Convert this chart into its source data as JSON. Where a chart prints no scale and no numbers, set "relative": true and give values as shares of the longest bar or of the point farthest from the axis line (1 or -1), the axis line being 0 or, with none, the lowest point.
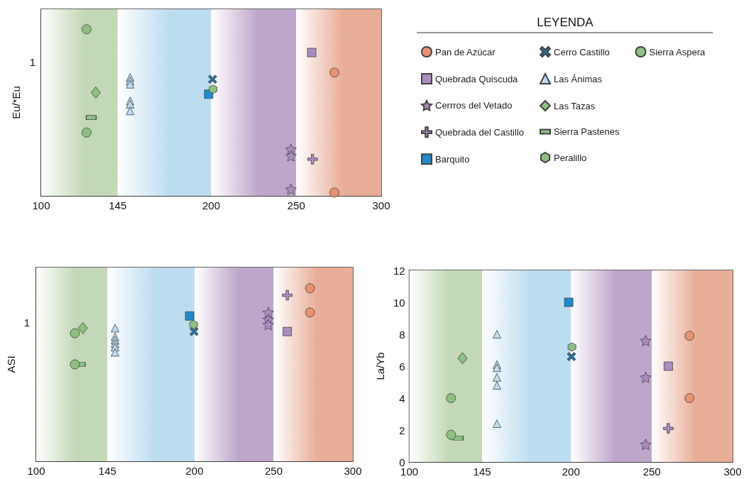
{
  "chart_data": [
    {
      "type": "scatter",
      "ylabel": "Eu/*Eu",
      "relative": true,
      "xlim": [
        100,
        300
      ],
      "xticks": [
        100,
        145,
        200,
        250,
        300
      ],
      "legend": "right",
      "legend_title": "LEYENDA",
      "annotations": [
        "1"
      ],
      "bands": [
        {
          "axis": "x",
          "from": 100,
          "to": 145,
          "color": "#c3d8b6"
        },
        {
          "axis": "x",
          "from": 145,
          "to": 200,
          "color": "#bcdcf0"
        },
        {
          "axis": "x",
          "from": 200,
          "to": 250,
          "color": "#bea6cb"
        },
        {
          "axis": "x",
          "from": 250,
          "to": 300,
          "color": "#e8ad97"
        }
      ],
      "series": [
        {
          "name": "Pan de Azúcar",
          "color": "#e8926f",
          "marker": "circle",
          "x": [
            272.5,
            272.5
          ],
          "values": [
            0.74,
            0.02
          ]
        },
        {
          "name": "Quebrada Quiscuda",
          "color": "#a98cc0",
          "marker": "square",
          "x": [
            259.1
          ],
          "values": [
            0.86
          ]
        },
        {
          "name": "Cerrros del Vetado",
          "color": "#a98cc0",
          "marker": "star",
          "x": [
            246.9,
            246.9,
            246.9
          ],
          "values": [
            0.28,
            0.24,
            0.04
          ]
        },
        {
          "name": "Quebrada del Castillo",
          "color": "#a98cc0",
          "marker": "cross",
          "x": [
            259.6
          ],
          "values": [
            0.22
          ]
        },
        {
          "name": "Barquito",
          "color": "#1a8ccc",
          "marker": "square",
          "x": [
            198.5
          ],
          "values": [
            0.61
          ]
        },
        {
          "name": "Cerro Castillo",
          "color": "#2a6f9e",
          "marker": "x",
          "x": [
            200.8
          ],
          "values": [
            0.7
          ]
        },
        {
          "name": "Las Ánimas",
          "color": "#bcdcf0",
          "marker": "triangle",
          "x": [
            152.3,
            152.3,
            152.3,
            152.3,
            152.3,
            152.3
          ],
          "values": [
            0.71,
            0.69,
            0.67,
            0.57,
            0.55,
            0.51
          ]
        },
        {
          "name": "Las Tazas",
          "color": "#8cbf80",
          "marker": "diamond",
          "x": [
            132.1
          ],
          "values": [
            0.62
          ]
        },
        {
          "name": "Sierra Pastenes",
          "color": "#8cbf80",
          "marker": "rect",
          "x": [
            129.4
          ],
          "values": [
            0.47
          ]
        },
        {
          "name": "Peralillo",
          "color": "#8cbf80",
          "x": [
            201.1
          ],
          "values": [
            0.64
          ]
        },
        {
          "name": "Sierra Aspera",
          "color": "#8cbf80",
          "marker": "circle",
          "x": [
            126.7,
            126.7
          ],
          "values": [
            1,
            0.38
          ]
        }
      ]
    },
    {
      "type": "scatter",
      "ylabel": "ASI",
      "relative": true,
      "xlim": [
        100,
        300
      ],
      "xticks": [
        100,
        145,
        200,
        250,
        300
      ],
      "annotations": [
        "1"
      ],
      "bands": [
        {
          "axis": "x",
          "from": 100,
          "to": 145,
          "color": "#c3d8b6"
        },
        {
          "axis": "x",
          "from": 145,
          "to": 200,
          "color": "#bcdcf0"
        },
        {
          "axis": "x",
          "from": 200,
          "to": 250,
          "color": "#bea6cb"
        },
        {
          "axis": "x",
          "from": 250,
          "to": 300,
          "color": "#e8ad97"
        }
      ],
      "series": [
        {
          "color": "#e8926f",
          "marker": "circle",
          "x": [
            272.9,
            272.9
          ],
          "values": [
            1,
            0.86
          ]
        },
        {
          "color": "#a98cc0",
          "marker": "square",
          "x": [
            258.6
          ],
          "values": [
            0.75
          ]
        },
        {
          "color": "#a98cc0",
          "marker": "star",
          "x": [
            246.6,
            246.6,
            246.6
          ],
          "values": [
            0.86,
            0.82,
            0.79
          ]
        },
        {
          "color": "#a98cc0",
          "marker": "cross",
          "x": [
            258.6
          ],
          "values": [
            0.96
          ]
        },
        {
          "color": "#1a8ccc",
          "marker": "square",
          "x": [
            196.9
          ],
          "values": [
            0.84
          ]
        },
        {
          "color": "#2a6f9e",
          "marker": "x",
          "x": [
            199.7
          ],
          "values": [
            0.75
          ]
        },
        {
          "color": "#bcdcf0",
          "marker": "triangle",
          "x": [
            149.8,
            149.8,
            149.8,
            149.8,
            149.8,
            149.8
          ],
          "values": [
            0.77,
            0.72,
            0.7,
            0.68,
            0.66,
            0.63
          ]
        },
        {
          "color": "#8cbf80",
          "marker": "diamond",
          "x": [
            129.5
          ],
          "values": [
            0.77
          ]
        },
        {
          "color": "#8cbf80",
          "marker": "rect",
          "x": [
            127.8
          ],
          "values": [
            0.56
          ]
        },
        {
          "color": "#8cbf80",
          "x": [
            199.4
          ],
          "values": [
            0.79
          ]
        },
        {
          "color": "#8cbf80",
          "marker": "circle",
          "x": [
            124.4,
            124.4
          ],
          "values": [
            0.74,
            0.56
          ]
        }
      ]
    },
    {
      "type": "scatter",
      "ylabel": "La/Yb",
      "xlim": [
        100,
        300
      ],
      "xticks": [
        100,
        145,
        200,
        250,
        300
      ],
      "ylim": [
        0,
        12
      ],
      "yticks": [
        0,
        2,
        4,
        6,
        8,
        10,
        12
      ],
      "bands": [
        {
          "axis": "x",
          "from": 100,
          "to": 145,
          "color": "#c3d8b6"
        },
        {
          "axis": "x",
          "from": 145,
          "to": 200,
          "color": "#bcdcf0"
        },
        {
          "axis": "x",
          "from": 200,
          "to": 250,
          "color": "#bea6cb"
        },
        {
          "axis": "x",
          "from": 250,
          "to": 300,
          "color": "#e8ad97"
        }
      ],
      "series": [
        {
          "color": "#e8926f",
          "marker": "circle",
          "x": [
            273.3,
            273.3
          ],
          "values": [
            7.9,
            4
          ]
        },
        {
          "color": "#a98cc0",
          "marker": "square",
          "x": [
            260.2
          ],
          "values": [
            6
          ]
        },
        {
          "color": "#a98cc0",
          "marker": "star",
          "x": [
            246.2,
            246.2,
            246.2
          ],
          "values": [
            7.6,
            5.3,
            1.1
          ]
        },
        {
          "color": "#a98cc0",
          "marker": "cross",
          "x": [
            260.2
          ],
          "values": [
            2.1
          ]
        },
        {
          "color": "#1a8ccc",
          "marker": "square",
          "x": [
            198.6
          ],
          "values": [
            10
          ]
        },
        {
          "color": "#2a6f9e",
          "marker": "x",
          "x": [
            200.3
          ],
          "values": [
            6.6
          ]
        },
        {
          "color": "#bcdcf0",
          "marker": "triangle",
          "x": [
            154.2,
            154.2,
            154.2,
            154.2,
            154.2,
            154.2
          ],
          "values": [
            8,
            6.1,
            5.9,
            5.3,
            4.8,
            2.4
          ]
        },
        {
          "color": "#8cbf80",
          "marker": "diamond",
          "x": [
            132.9
          ],
          "values": [
            6.5
          ]
        },
        {
          "color": "#8cbf80",
          "marker": "rect",
          "x": [
            130.2
          ],
          "values": [
            1.5
          ]
        },
        {
          "color": "#8cbf80",
          "x": [
            200.6
          ],
          "values": [
            7.2
          ]
        },
        {
          "color": "#8cbf80",
          "marker": "circle",
          "x": [
            125.8,
            125.8
          ],
          "values": [
            4,
            1.7
          ]
        }
      ]
    }
  ]
}
